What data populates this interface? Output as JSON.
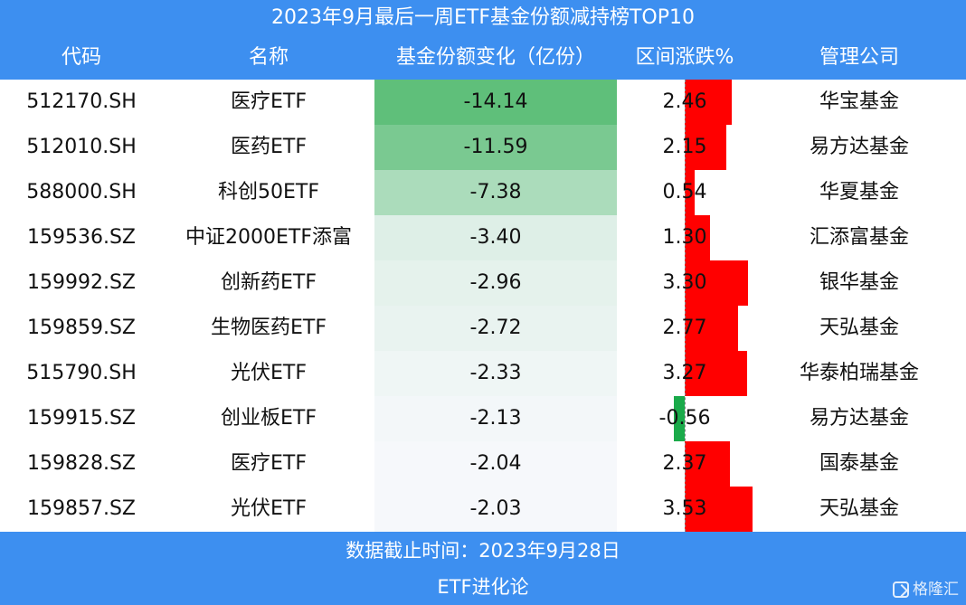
{
  "chart_data": {
    "type": "table",
    "title": "2023年9月最后一周ETF基金份额减持榜TOP10",
    "columns": [
      "代码",
      "名称",
      "基金份额变化（亿份）",
      "区间涨跌%",
      "管理公司"
    ],
    "rows": [
      {
        "code": "512170.SH",
        "name": "医疗ETF",
        "share_change": -14.14,
        "change_text": "-14.14",
        "pct": 2.46,
        "pct_text": "2.46",
        "manager": "华宝基金"
      },
      {
        "code": "512010.SH",
        "name": "医药ETF",
        "share_change": -11.59,
        "change_text": "-11.59",
        "pct": 2.15,
        "pct_text": "2.15",
        "manager": "易方达基金"
      },
      {
        "code": "588000.SH",
        "name": "科创50ETF",
        "share_change": -7.38,
        "change_text": "-7.38",
        "pct": 0.54,
        "pct_text": "0.54",
        "manager": "华夏基金"
      },
      {
        "code": "159536.SZ",
        "name": "中证2000ETF添富",
        "share_change": -3.4,
        "change_text": "-3.40",
        "pct": 1.3,
        "pct_text": "1.30",
        "manager": "汇添富基金"
      },
      {
        "code": "159992.SZ",
        "name": "创新药ETF",
        "share_change": -2.96,
        "change_text": "-2.96",
        "pct": 3.3,
        "pct_text": "3.30",
        "manager": "银华基金"
      },
      {
        "code": "159859.SZ",
        "name": "生物医药ETF",
        "share_change": -2.72,
        "change_text": "-2.72",
        "pct": 2.77,
        "pct_text": "2.77",
        "manager": "天弘基金"
      },
      {
        "code": "515790.SH",
        "name": "光伏ETF",
        "share_change": -2.33,
        "change_text": "-2.33",
        "pct": 3.27,
        "pct_text": "3.27",
        "manager": "华泰柏瑞基金"
      },
      {
        "code": "159915.SZ",
        "name": "创业板ETF",
        "share_change": -2.13,
        "change_text": "-2.13",
        "pct": -0.56,
        "pct_text": "-0.56",
        "manager": "易方达基金"
      },
      {
        "code": "159828.SZ",
        "name": "医疗ETF",
        "share_change": -2.04,
        "change_text": "-2.04",
        "pct": 2.37,
        "pct_text": "2.37",
        "manager": "国泰基金"
      },
      {
        "code": "159857.SZ",
        "name": "光伏ETF",
        "share_change": -2.03,
        "change_text": "-2.03",
        "pct": 3.53,
        "pct_text": "3.53",
        "manager": "天弘基金"
      }
    ],
    "colors": {
      "header_bg": "#3d8ff0",
      "heat_strong": "#5fbf7a",
      "heat_light": "#f6f8fb",
      "bar_positive": "#ff0000",
      "bar_negative": "#1aaa4a"
    }
  },
  "footer": {
    "date_note": "数据截止时间：2023年9月28日",
    "source": "ETF进化论",
    "watermark": "格隆汇"
  }
}
